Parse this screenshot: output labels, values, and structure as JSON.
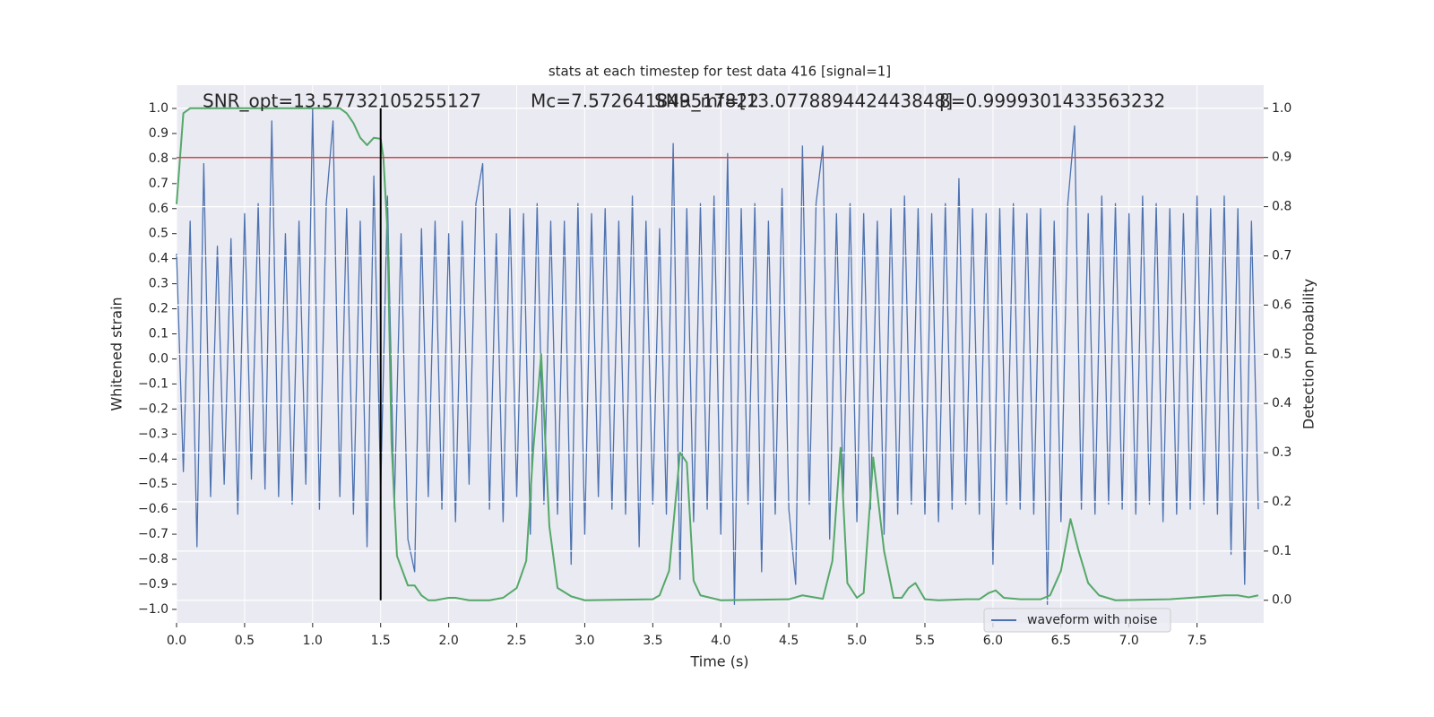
{
  "chart_data": {
    "type": "line",
    "title": "stats at each timestep for test data 416 [signal=1]",
    "xlabel": "Time (s)",
    "ylabel": "Whitened strain",
    "y2label": "Detection probability",
    "annotations": [
      "SNR_opt=13.57732105255127",
      "Mc=7.572641849517822",
      "SNR_mf=[13.077889442443848]",
      "β=0.9999301433563232"
    ],
    "xlim": [
      0,
      7.99
    ],
    "ylim": [
      -1.054,
      1.093
    ],
    "y2lim": [
      -0.046,
      1.047
    ],
    "xticks": [
      {
        "value": 0,
        "label": "0.0"
      },
      {
        "value": 0.5,
        "label": "0.5"
      },
      {
        "value": 1,
        "label": "1.0"
      },
      {
        "value": 1.5,
        "label": "1.5"
      },
      {
        "value": 2,
        "label": "2.0"
      },
      {
        "value": 2.5,
        "label": "2.5"
      },
      {
        "value": 3,
        "label": "3.0"
      },
      {
        "value": 3.5,
        "label": "3.5"
      },
      {
        "value": 4,
        "label": "4.0"
      },
      {
        "value": 4.5,
        "label": "4.5"
      },
      {
        "value": 5,
        "label": "5.0"
      },
      {
        "value": 5.5,
        "label": "5.5"
      },
      {
        "value": 6,
        "label": "6.0"
      },
      {
        "value": 6.5,
        "label": "6.5"
      },
      {
        "value": 7,
        "label": "7.0"
      },
      {
        "value": 7.5,
        "label": "7.5"
      }
    ],
    "yticks": [
      {
        "value": -1,
        "label": "−1.0"
      },
      {
        "value": -0.9,
        "label": "−0.9"
      },
      {
        "value": -0.8,
        "label": "−0.8"
      },
      {
        "value": -0.7,
        "label": "−0.7"
      },
      {
        "value": -0.6,
        "label": "−0.6"
      },
      {
        "value": -0.5,
        "label": "−0.5"
      },
      {
        "value": -0.4,
        "label": "−0.4"
      },
      {
        "value": -0.3,
        "label": "−0.3"
      },
      {
        "value": -0.2,
        "label": "−0.2"
      },
      {
        "value": -0.1,
        "label": "−0.1"
      },
      {
        "value": 0,
        "label": "0.0"
      },
      {
        "value": 0.1,
        "label": "0.1"
      },
      {
        "value": 0.2,
        "label": "0.2"
      },
      {
        "value": 0.3,
        "label": "0.3"
      },
      {
        "value": 0.4,
        "label": "0.4"
      },
      {
        "value": 0.5,
        "label": "0.5"
      },
      {
        "value": 0.6,
        "label": "0.6"
      },
      {
        "value": 0.7,
        "label": "0.7"
      },
      {
        "value": 0.8,
        "label": "0.8"
      },
      {
        "value": 0.9,
        "label": "0.9"
      },
      {
        "value": 1,
        "label": "1.0"
      }
    ],
    "y2ticks": [
      {
        "value": 0,
        "label": "0.0"
      },
      {
        "value": 0.1,
        "label": "0.1"
      },
      {
        "value": 0.2,
        "label": "0.2"
      },
      {
        "value": 0.3,
        "label": "0.3"
      },
      {
        "value": 0.4,
        "label": "0.4"
      },
      {
        "value": 0.5,
        "label": "0.5"
      },
      {
        "value": 0.6,
        "label": "0.6"
      },
      {
        "value": 0.7,
        "label": "0.7"
      },
      {
        "value": 0.8,
        "label": "0.8"
      },
      {
        "value": 0.9,
        "label": "0.9"
      },
      {
        "value": 1,
        "label": "1.0"
      }
    ],
    "grid": true,
    "legend": "best",
    "series": [
      {
        "name": "waveform with noise",
        "color": "#4c72b0",
        "x": [
          0,
          0.05,
          0.1,
          0.15,
          0.2,
          0.25,
          0.3,
          0.35,
          0.4,
          0.45,
          0.5,
          0.55,
          0.6,
          0.65,
          0.7,
          0.75,
          0.8,
          0.85,
          0.9,
          0.95,
          1,
          1.05,
          1.1,
          1.15,
          1.2,
          1.25,
          1.3,
          1.35,
          1.4,
          1.45,
          1.5,
          1.55,
          1.6,
          1.65,
          1.7,
          1.75,
          1.8,
          1.85,
          1.9,
          1.95,
          2,
          2.05,
          2.1,
          2.15,
          2.2,
          2.25,
          2.3,
          2.35,
          2.4,
          2.45,
          2.5,
          2.55,
          2.6,
          2.65,
          2.7,
          2.75,
          2.8,
          2.85,
          2.9,
          2.95,
          3,
          3.05,
          3.1,
          3.15,
          3.2,
          3.25,
          3.3,
          3.35,
          3.4,
          3.45,
          3.5,
          3.55,
          3.6,
          3.65,
          3.7,
          3.75,
          3.8,
          3.85,
          3.9,
          3.95,
          4,
          4.05,
          4.1,
          4.15,
          4.2,
          4.25,
          4.3,
          4.35,
          4.4,
          4.45,
          4.5,
          4.55,
          4.6,
          4.65,
          4.7,
          4.75,
          4.8,
          4.85,
          4.9,
          4.95,
          5,
          5.05,
          5.1,
          5.15,
          5.2,
          5.25,
          5.3,
          5.35,
          5.4,
          5.45,
          5.5,
          5.55,
          5.6,
          5.65,
          5.7,
          5.75,
          5.8,
          5.85,
          5.9,
          5.95,
          6,
          6.05,
          6.1,
          6.15,
          6.2,
          6.25,
          6.3,
          6.35,
          6.4,
          6.45,
          6.5,
          6.55,
          6.6,
          6.65,
          6.7,
          6.75,
          6.8,
          6.85,
          6.9,
          6.95,
          7,
          7.05,
          7.1,
          7.15,
          7.2,
          7.25,
          7.3,
          7.35,
          7.4,
          7.45,
          7.5,
          7.55,
          7.6,
          7.65,
          7.7,
          7.75,
          7.8,
          7.85,
          7.9,
          7.95
        ],
        "values": [
          0.42,
          -0.45,
          0.55,
          -0.75,
          0.78,
          -0.55,
          0.45,
          -0.5,
          0.48,
          -0.62,
          0.58,
          -0.48,
          0.62,
          -0.52,
          0.95,
          -0.55,
          0.5,
          -0.58,
          0.55,
          -0.5,
          1,
          -0.6,
          0.62,
          0.95,
          -0.55,
          0.6,
          -0.62,
          0.55,
          -0.75,
          0.73,
          -0.53,
          0.65,
          -0.6,
          0.5,
          -0.72,
          -0.85,
          0.52,
          -0.55,
          0.55,
          -0.6,
          0.5,
          -0.65,
          0.55,
          -0.5,
          0.62,
          0.78,
          -0.6,
          0.5,
          -0.65,
          0.6,
          -0.55,
          0.58,
          -0.7,
          0.62,
          -0.58,
          0.55,
          -0.62,
          0.55,
          -0.82,
          0.62,
          -0.7,
          0.58,
          -0.55,
          0.6,
          -0.6,
          0.55,
          -0.62,
          0.65,
          -0.75,
          0.55,
          -0.58,
          0.52,
          -0.62,
          0.86,
          -0.88,
          0.6,
          -0.65,
          0.62,
          -0.6,
          0.65,
          -0.7,
          0.82,
          -0.98,
          0.6,
          -0.58,
          0.62,
          -0.85,
          0.55,
          -0.62,
          0.68,
          -0.6,
          -0.9,
          0.85,
          -0.58,
          0.62,
          0.85,
          -0.72,
          0.58,
          -0.55,
          0.62,
          -0.65,
          0.58,
          -0.6,
          0.55,
          -0.7,
          0.6,
          -0.62,
          0.65,
          -0.58,
          0.6,
          -0.62,
          0.58,
          -0.65,
          0.62,
          -0.6,
          0.72,
          -0.58,
          0.6,
          -0.62,
          0.58,
          -0.82,
          0.6,
          -0.58,
          0.62,
          -0.6,
          0.58,
          -0.62,
          0.6,
          -0.98,
          0.55,
          -0.65,
          0.62,
          0.93,
          -0.6,
          0.58,
          -0.62,
          0.65,
          -0.58,
          0.62,
          -0.6,
          0.58,
          -0.62,
          0.65,
          -0.58,
          0.62,
          -0.65,
          0.6,
          -0.62,
          0.58,
          -0.6,
          0.65,
          -0.58,
          0.6,
          -0.62,
          0.65,
          -0.78,
          0.6,
          -0.9,
          0.55,
          -0.6
        ]
      },
      {
        "color": "#55a868",
        "axis": "y2",
        "x": [
          0,
          0.05,
          0.1,
          0.2,
          1.2,
          1.25,
          1.3,
          1.35,
          1.4,
          1.45,
          1.5,
          1.52,
          1.55,
          1.58,
          1.62,
          1.7,
          1.75,
          1.8,
          1.85,
          1.9,
          2,
          2.05,
          2.15,
          2.3,
          2.4,
          2.5,
          2.57,
          2.62,
          2.68,
          2.74,
          2.8,
          2.9,
          3,
          3.5,
          3.55,
          3.62,
          3.7,
          3.75,
          3.8,
          3.85,
          4,
          4.5,
          4.6,
          4.75,
          4.82,
          4.88,
          4.93,
          5,
          5.05,
          5.12,
          5.2,
          5.27,
          5.33,
          5.38,
          5.43,
          5.5,
          5.6,
          5.8,
          5.9,
          5.97,
          6.02,
          6.08,
          6.2,
          6.35,
          6.42,
          6.5,
          6.57,
          6.63,
          6.7,
          6.78,
          6.9,
          7.3,
          7.6,
          7.7,
          7.8,
          7.88,
          7.95
        ],
        "values": [
          0.805,
          0.99,
          1,
          1,
          1,
          0.99,
          0.97,
          0.94,
          0.925,
          0.94,
          0.938,
          0.9,
          0.75,
          0.32,
          0.09,
          0.03,
          0.03,
          0.01,
          0,
          0,
          0.005,
          0.005,
          0,
          0,
          0.005,
          0.025,
          0.08,
          0.3,
          0.5,
          0.15,
          0.025,
          0.008,
          0,
          0.002,
          0.01,
          0.06,
          0.3,
          0.28,
          0.04,
          0.01,
          0,
          0.002,
          0.01,
          0.003,
          0.08,
          0.31,
          0.035,
          0.005,
          0.015,
          0.29,
          0.1,
          0.005,
          0.005,
          0.025,
          0.035,
          0.002,
          0,
          0.002,
          0.002,
          0.015,
          0.02,
          0.005,
          0.002,
          0.002,
          0.01,
          0.06,
          0.165,
          0.1,
          0.035,
          0.01,
          0,
          0.002,
          0.008,
          0.01,
          0.01,
          0.006,
          0.01
        ]
      }
    ],
    "hlines": [
      {
        "y": 0.9,
        "axis": "y2",
        "color": "#c44e52"
      }
    ],
    "vlines": [
      {
        "x": 1.5,
        "ymin": 0,
        "ymax": 1,
        "axis": "y2",
        "color": "#000000"
      }
    ]
  }
}
